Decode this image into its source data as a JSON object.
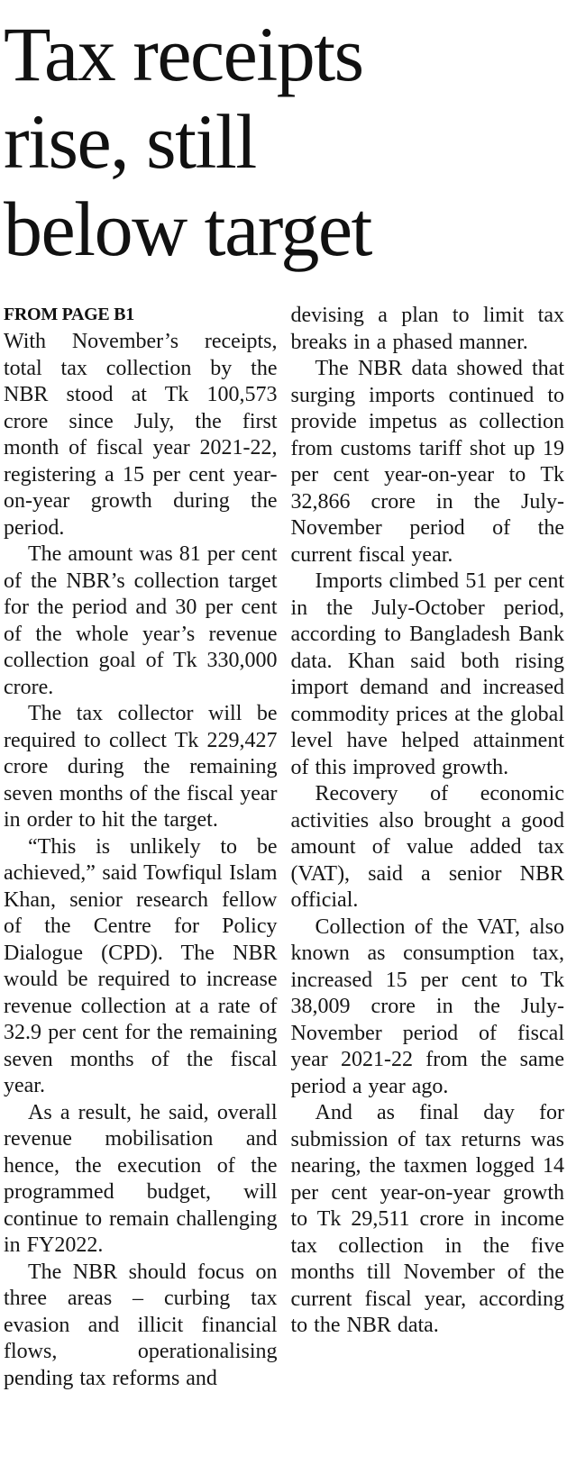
{
  "colors": {
    "text": "#161616",
    "background": "#ffffff"
  },
  "headline": {
    "text": "Tax receipts rise, still below target",
    "lines": [
      "Tax receipts",
      "rise, still",
      "below target"
    ]
  },
  "kicker": "FROM PAGE B1",
  "columns": {
    "left": [
      "With November’s receipts, total tax collection by the NBR stood at Tk 100,573 crore since July, the first month of fiscal year 2021-22, registering a 15 per cent year-on-year growth during the period.",
      "The amount was 81 per cent of the NBR’s collection target for the period and 30 per cent of the whole year’s revenue collection goal of Tk 330,000 crore.",
      "The tax collector will be required to collect Tk 229,427 crore during the remaining seven months of the fiscal year in order to hit the target.",
      "“This is unlikely to be achieved,” said Towfiqul Islam Khan, senior research fellow of the Centre for Policy Dialogue (CPD). The NBR would be required to increase revenue collection at a rate of 32.9 per cent for the remaining seven months of the fiscal year.",
      "As a result, he said, overall revenue mobilisation and hence, the execution of the programmed budget, will continue to remain challenging in FY2022.",
      "The NBR should focus on three areas – curbing tax evasion and illicit financial flows, operationalising pending tax reforms and"
    ],
    "right": [
      "devising a plan to limit tax breaks in a phased manner.",
      "The NBR data showed that surging imports continued to provide impetus as collection from customs tariff shot up 19 per cent year-on-year to Tk 32,866 crore in the July-November period of the current fiscal year.",
      "Imports climbed 51 per cent in the July-October period, according to Bangladesh Bank data. Khan said both rising import demand and increased commodity prices at the global level have helped attainment of this improved growth.",
      "Recovery of economic activities also brought a good amount of value added tax (VAT), said a senior NBR official.",
      "Collection of the VAT, also known as consumption tax, increased 15 per cent to Tk 38,009 crore in the July-November period of fiscal year 2021-22 from the same period a year ago.",
      "And as final day for submission of tax returns was nearing, the taxmen logged 14 per cent year-on-year growth to Tk 29,511 crore in income tax collection in the five months till November of the current fiscal year, according to the NBR data."
    ]
  }
}
